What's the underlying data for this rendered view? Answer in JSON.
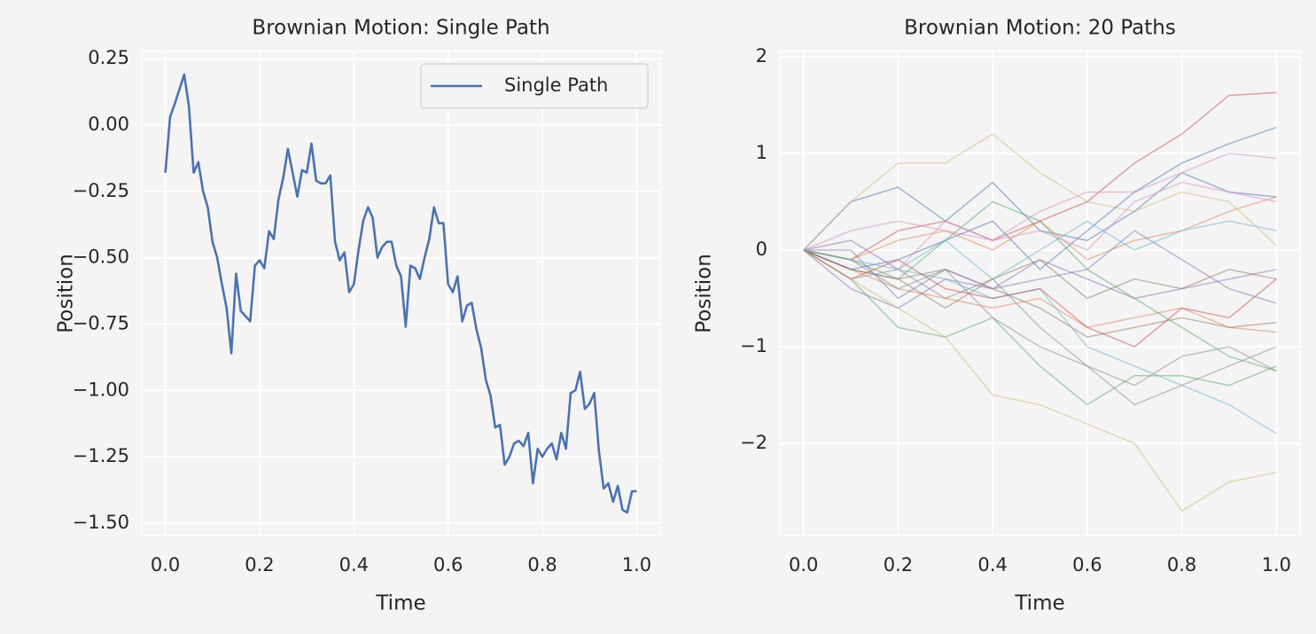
{
  "chart_data": [
    {
      "type": "line",
      "title": "Brownian Motion: Single Path",
      "xlabel": "Time",
      "ylabel": "Position",
      "xlim": [
        -0.05,
        1.05
      ],
      "ylim": [
        -1.547,
        0.277
      ],
      "xticks": [
        {
          "value": 0,
          "label": "0.0"
        },
        0.2,
        0.4,
        0.6,
        0.8,
        {
          "value": 1,
          "label": "1.0"
        }
      ],
      "yticks": [
        {
          "value": -1.5,
          "label": "−1.50"
        },
        {
          "value": -1.25,
          "label": "−1.25"
        },
        {
          "value": -1,
          "label": "−1.00"
        },
        {
          "value": -0.75,
          "label": "−0.75"
        },
        {
          "value": -0.5,
          "label": "−0.50"
        },
        {
          "value": -0.25,
          "label": "−0.25"
        },
        {
          "value": 0,
          "label": "0.00"
        },
        0.25
      ],
      "grid": true,
      "legend": "upper right",
      "x": [
        0,
        0.01,
        0.02,
        0.04,
        0.05,
        0.06,
        0.07,
        0.08,
        0.09,
        0.1,
        0.11,
        0.12,
        0.13,
        0.14,
        0.15,
        0.16,
        0.18,
        0.19,
        0.2,
        0.21,
        0.22,
        0.23,
        0.24,
        0.25,
        0.26,
        0.27,
        0.28,
        0.29,
        0.3,
        0.31,
        0.32,
        0.33,
        0.34,
        0.35,
        0.36,
        0.37,
        0.38,
        0.39,
        0.4,
        0.41,
        0.42,
        0.43,
        0.44,
        0.45,
        0.46,
        0.47,
        0.48,
        0.49,
        0.5,
        0.51,
        0.52,
        0.53,
        0.54,
        0.55,
        0.56,
        0.57,
        0.58,
        0.59,
        0.6,
        0.61,
        0.62,
        0.63,
        0.64,
        0.65,
        0.66,
        0.67,
        0.68,
        0.69,
        0.7,
        0.71,
        0.72,
        0.73,
        0.74,
        0.75,
        0.76,
        0.77,
        0.78,
        0.79,
        0.8,
        0.81,
        0.82,
        0.83,
        0.84,
        0.85,
        0.86,
        0.87,
        0.88,
        0.89,
        0.9,
        0.91,
        0.92,
        0.93,
        0.94,
        0.95,
        0.96,
        0.97,
        0.98,
        0.99,
        1.0
      ],
      "series": [
        {
          "name": "Single Path",
          "color": "#4c72b0",
          "values": [
            -0.18,
            0.03,
            0.08,
            0.19,
            0.07,
            -0.18,
            -0.14,
            -0.25,
            -0.31,
            -0.44,
            -0.5,
            -0.6,
            -0.69,
            -0.86,
            -0.56,
            -0.7,
            -0.74,
            -0.53,
            -0.51,
            -0.54,
            -0.4,
            -0.43,
            -0.28,
            -0.2,
            -0.09,
            -0.18,
            -0.27,
            -0.17,
            -0.18,
            -0.07,
            -0.21,
            -0.22,
            -0.22,
            -0.19,
            -0.44,
            -0.51,
            -0.48,
            -0.63,
            -0.6,
            -0.47,
            -0.36,
            -0.31,
            -0.35,
            -0.5,
            -0.46,
            -0.44,
            -0.44,
            -0.53,
            -0.57,
            -0.76,
            -0.53,
            -0.54,
            -0.58,
            -0.5,
            -0.43,
            -0.31,
            -0.37,
            -0.37,
            -0.6,
            -0.63,
            -0.57,
            -0.74,
            -0.68,
            -0.67,
            -0.77,
            -0.84,
            -0.96,
            -1.02,
            -1.14,
            -1.13,
            -1.28,
            -1.25,
            -1.2,
            -1.19,
            -1.21,
            -1.16,
            -1.35,
            -1.22,
            -1.25,
            -1.22,
            -1.2,
            -1.26,
            -1.16,
            -1.22,
            -1.01,
            -1.0,
            -0.93,
            -1.07,
            -1.05,
            -1.01,
            -1.23,
            -1.37,
            -1.35,
            -1.42,
            -1.36,
            -1.45,
            -1.46,
            -1.38,
            -1.38
          ]
        }
      ]
    },
    {
      "type": "line",
      "title": "Brownian Motion: 20 Paths",
      "xlabel": "Time",
      "ylabel": "Position",
      "xlim": [
        -0.05,
        1.05
      ],
      "ylim": [
        -2.954,
        2.055
      ],
      "xticks": [
        {
          "value": 0,
          "label": "0.0"
        },
        0.2,
        0.4,
        0.6,
        0.8,
        {
          "value": 1,
          "label": "1.0"
        }
      ],
      "yticks": [
        {
          "value": -2,
          "label": "−2"
        },
        {
          "value": -1,
          "label": "−1"
        },
        0,
        1,
        2
      ],
      "grid": true,
      "alpha": 0.5,
      "x": [
        0,
        0.1,
        0.2,
        0.3,
        0.4,
        0.5,
        0.6,
        0.7,
        0.8,
        0.9,
        1.0
      ],
      "series": [
        {
          "color": "#4c72b0",
          "values": [
            0,
            0.5,
            0.65,
            0.3,
            0.7,
            0.2,
            0.1,
            0.4,
            0.8,
            0.6,
            0.55
          ]
        },
        {
          "color": "#dd8452",
          "values": [
            0,
            -0.2,
            -0.4,
            -0.5,
            -0.6,
            -0.5,
            -0.8,
            -0.7,
            -0.6,
            -0.8,
            -0.85
          ]
        },
        {
          "color": "#55a868",
          "values": [
            0,
            -0.3,
            -0.8,
            -0.9,
            -0.7,
            -1.2,
            -1.6,
            -1.3,
            -1.3,
            -1.4,
            -1.2
          ]
        },
        {
          "color": "#c44e52",
          "values": [
            0,
            -0.1,
            0.2,
            0.3,
            0.1,
            0.3,
            0.5,
            0.9,
            1.2,
            1.6,
            1.63
          ]
        },
        {
          "color": "#8172b3",
          "values": [
            0,
            -0.4,
            -0.6,
            -0.3,
            -0.4,
            -0.1,
            -0.3,
            -0.5,
            -0.4,
            -0.3,
            -0.2
          ]
        },
        {
          "color": "#937860",
          "values": [
            0,
            -0.2,
            -0.3,
            -0.2,
            -0.4,
            -0.6,
            -0.9,
            -0.8,
            -0.7,
            -0.8,
            -0.75
          ]
        },
        {
          "color": "#da8bc3",
          "values": [
            0,
            0.2,
            0.3,
            0.2,
            0.1,
            0.4,
            0.6,
            0.6,
            0.8,
            1.0,
            0.95
          ]
        },
        {
          "color": "#8c8c8c",
          "values": [
            0,
            -0.3,
            -0.2,
            -0.5,
            -0.3,
            -0.8,
            -1.2,
            -1.4,
            -1.1,
            -1.0,
            -1.25
          ]
        },
        {
          "color": "#ccb974",
          "values": [
            0,
            0.5,
            0.9,
            0.9,
            1.2,
            0.8,
            0.5,
            0.4,
            0.6,
            0.5,
            0.05
          ]
        },
        {
          "color": "#64b5cd",
          "values": [
            0,
            0.1,
            -0.2,
            -0.3,
            -0.5,
            -0.4,
            -1.0,
            -1.2,
            -1.4,
            -1.6,
            -1.9
          ]
        },
        {
          "color": "#4c72b0",
          "values": [
            0,
            -0.2,
            -0.1,
            0.1,
            0.3,
            -0.2,
            0.2,
            0.6,
            0.9,
            1.1,
            1.27
          ]
        },
        {
          "color": "#dd8452",
          "values": [
            0,
            -0.1,
            0.1,
            0.2,
            0.0,
            0.3,
            -0.1,
            0.1,
            0.2,
            0.4,
            0.55
          ]
        },
        {
          "color": "#55a868",
          "values": [
            0,
            -0.1,
            -0.3,
            0.1,
            0.5,
            0.3,
            -0.2,
            -0.5,
            -0.8,
            -1.1,
            -1.25
          ]
        },
        {
          "color": "#c44e52",
          "values": [
            0,
            -0.3,
            -0.1,
            -0.4,
            -0.5,
            -0.4,
            -0.8,
            -1.0,
            -0.6,
            -0.7,
            -0.3
          ]
        },
        {
          "color": "#8172b3",
          "values": [
            0,
            0.0,
            -0.5,
            -0.2,
            -0.4,
            -0.3,
            -0.2,
            0.2,
            -0.1,
            -0.4,
            -0.55
          ]
        },
        {
          "color": "#937860",
          "values": [
            0,
            -0.2,
            -0.3,
            -0.6,
            -0.3,
            -0.1,
            -0.5,
            -0.3,
            -0.4,
            -0.2,
            -0.3
          ]
        },
        {
          "color": "#da8bc3",
          "values": [
            0,
            0.1,
            -0.2,
            0.3,
            0.1,
            0.2,
            0.0,
            0.5,
            0.7,
            0.6,
            0.5
          ]
        },
        {
          "color": "#8c8c8c",
          "values": [
            0,
            -0.1,
            -0.4,
            -0.2,
            -0.7,
            -1.0,
            -1.2,
            -1.6,
            -1.4,
            -1.2,
            -1.0
          ]
        },
        {
          "color": "#ccb974",
          "values": [
            0,
            -0.3,
            -0.6,
            -0.9,
            -1.5,
            -1.6,
            -1.8,
            -2.0,
            -2.7,
            -2.4,
            -2.3
          ]
        },
        {
          "color": "#64b5cd",
          "values": [
            0,
            -0.1,
            -0.2,
            0.1,
            -0.3,
            0.0,
            0.3,
            0.0,
            0.2,
            0.3,
            0.2
          ]
        }
      ]
    }
  ]
}
